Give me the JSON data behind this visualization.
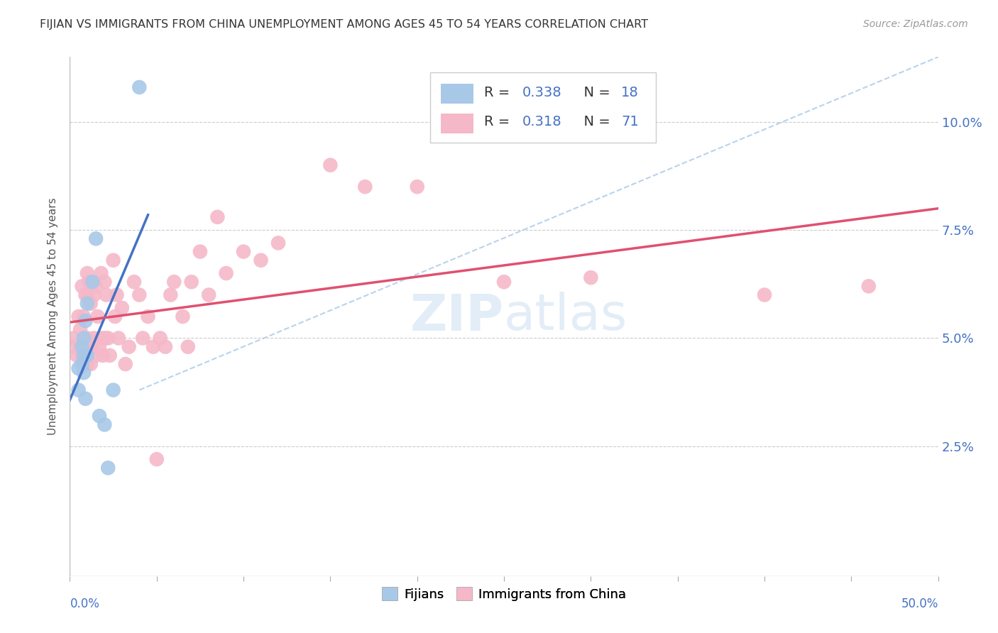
{
  "title": "FIJIAN VS IMMIGRANTS FROM CHINA UNEMPLOYMENT AMONG AGES 45 TO 54 YEARS CORRELATION CHART",
  "source": "Source: ZipAtlas.com",
  "ylabel": "Unemployment Among Ages 45 to 54 years",
  "xlim": [
    0.0,
    0.5
  ],
  "ylim": [
    -0.005,
    0.115
  ],
  "yticks": [
    0.025,
    0.05,
    0.075,
    0.1
  ],
  "ytick_labels": [
    "2.5%",
    "5.0%",
    "7.5%",
    "10.0%"
  ],
  "xticks": [
    0.0,
    0.05,
    0.1,
    0.15,
    0.2,
    0.25,
    0.3,
    0.35,
    0.4,
    0.45,
    0.5
  ],
  "fijian_color": "#a8c8e8",
  "china_color": "#f5b8c8",
  "fijian_line_color": "#4472c4",
  "china_line_color": "#e05070",
  "diagonal_color": "#a8c8e8",
  "fijians_label": "Fijians",
  "china_label": "Immigrants from China",
  "watermark": "ZIPAtlas",
  "fijian_x": [
    0.005,
    0.005,
    0.007,
    0.007,
    0.008,
    0.008,
    0.008,
    0.009,
    0.009,
    0.01,
    0.01,
    0.013,
    0.015,
    0.017,
    0.02,
    0.022,
    0.025,
    0.04
  ],
  "fijian_y": [
    0.043,
    0.038,
    0.048,
    0.044,
    0.05,
    0.046,
    0.042,
    0.054,
    0.036,
    0.058,
    0.046,
    0.063,
    0.073,
    0.032,
    0.03,
    0.02,
    0.038,
    0.108
  ],
  "china_x": [
    0.002,
    0.003,
    0.004,
    0.005,
    0.006,
    0.006,
    0.007,
    0.007,
    0.008,
    0.008,
    0.009,
    0.009,
    0.009,
    0.01,
    0.01,
    0.01,
    0.01,
    0.011,
    0.011,
    0.012,
    0.012,
    0.013,
    0.013,
    0.014,
    0.014,
    0.015,
    0.015,
    0.016,
    0.017,
    0.018,
    0.018,
    0.019,
    0.02,
    0.02,
    0.021,
    0.022,
    0.023,
    0.025,
    0.026,
    0.027,
    0.028,
    0.03,
    0.032,
    0.034,
    0.037,
    0.04,
    0.042,
    0.045,
    0.048,
    0.05,
    0.052,
    0.055,
    0.058,
    0.06,
    0.065,
    0.068,
    0.07,
    0.075,
    0.08,
    0.085,
    0.09,
    0.1,
    0.11,
    0.12,
    0.15,
    0.17,
    0.2,
    0.25,
    0.3,
    0.4,
    0.46
  ],
  "china_y": [
    0.05,
    0.048,
    0.046,
    0.055,
    0.052,
    0.048,
    0.062,
    0.046,
    0.055,
    0.048,
    0.06,
    0.05,
    0.044,
    0.065,
    0.06,
    0.05,
    0.044,
    0.063,
    0.048,
    0.058,
    0.044,
    0.063,
    0.048,
    0.06,
    0.05,
    0.062,
    0.046,
    0.055,
    0.048,
    0.065,
    0.05,
    0.046,
    0.063,
    0.05,
    0.06,
    0.05,
    0.046,
    0.068,
    0.055,
    0.06,
    0.05,
    0.057,
    0.044,
    0.048,
    0.063,
    0.06,
    0.05,
    0.055,
    0.048,
    0.022,
    0.05,
    0.048,
    0.06,
    0.063,
    0.055,
    0.048,
    0.063,
    0.07,
    0.06,
    0.078,
    0.065,
    0.07,
    0.068,
    0.072,
    0.09,
    0.085,
    0.085,
    0.063,
    0.064,
    0.06,
    0.062
  ],
  "fijian_line_xlim": [
    0.0,
    0.05
  ],
  "background_color": "#ffffff",
  "grid_color": "#cccccc"
}
